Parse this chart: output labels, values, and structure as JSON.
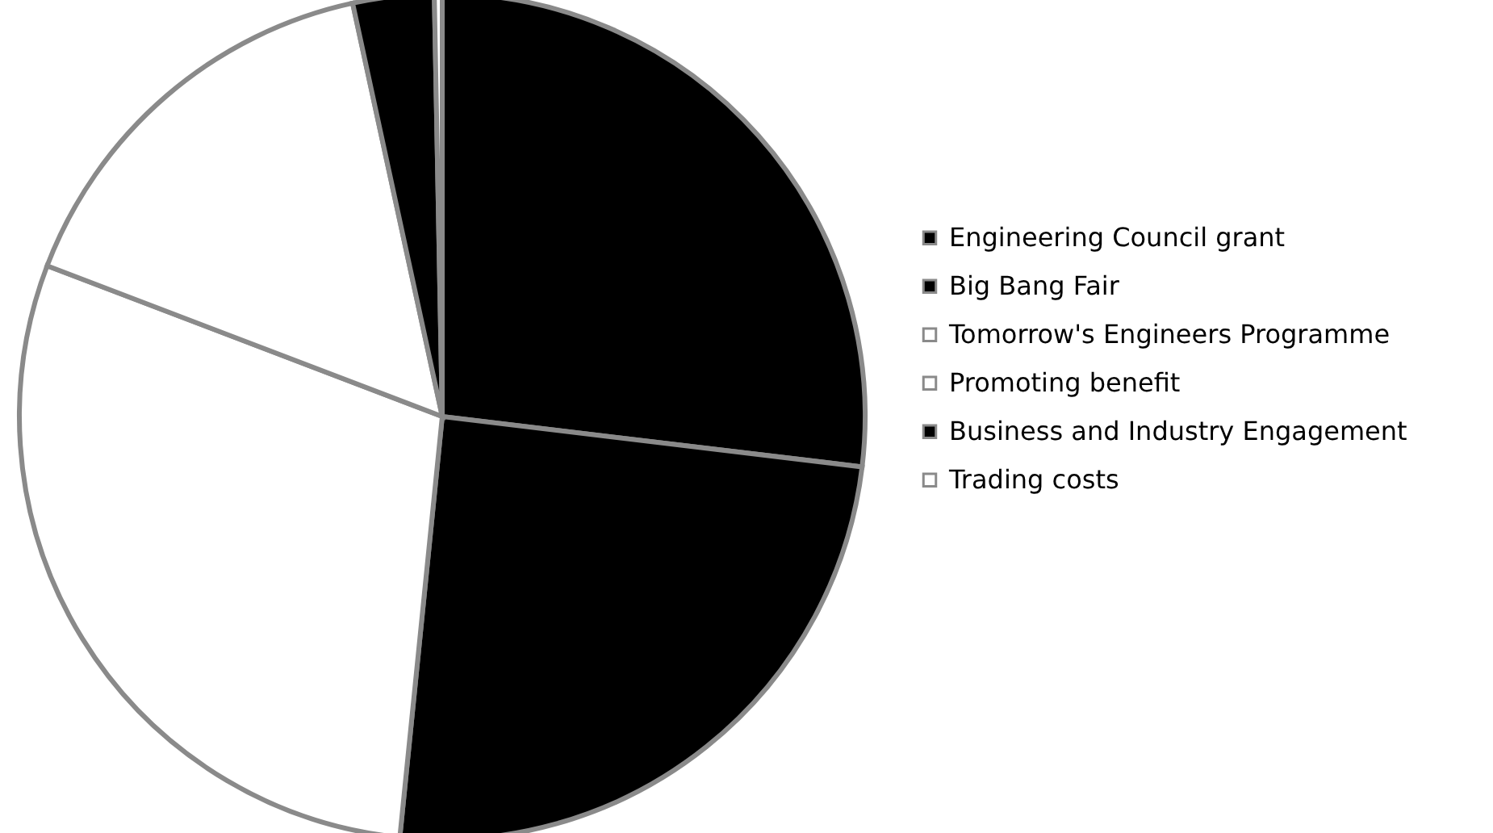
{
  "chart_data": {
    "type": "pie",
    "categories": [
      "Engineering Council grant",
      "Big Bang Fair",
      "Tomorrow's Engineers Programme",
      "Promoting benefit",
      "Business and Industry Engagement",
      "Trading costs"
    ],
    "values": [
      26.9,
      24.7,
      29.2,
      15.8,
      3.1,
      0.3
    ],
    "colors": [
      "#000000",
      "#000000",
      "#ffffff",
      "#ffffff",
      "#000000",
      "#ffffff"
    ],
    "legend": "right"
  }
}
